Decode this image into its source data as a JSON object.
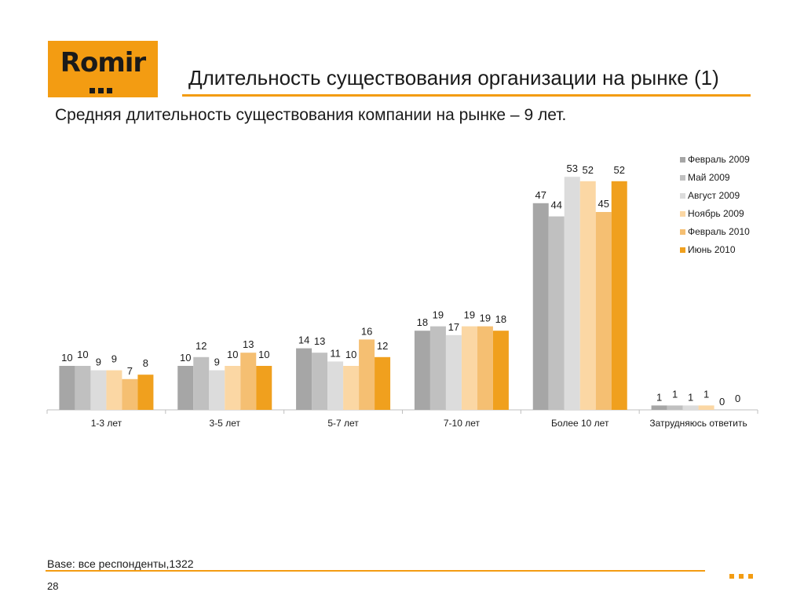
{
  "logo": {
    "text": "Romir"
  },
  "title": "Длительность существования организации на рынке (1)",
  "subtitle": "Средняя длительность существования компании на рынке – 9 лет.",
  "footer": {
    "base_note": "Base: все респонденты,1322",
    "page_number": "28"
  },
  "colors": {
    "accent": "#f39c12"
  },
  "chart_data": {
    "type": "bar",
    "categories": [
      "1-3 лет",
      "3-5 лет",
      "5-7 лет",
      "7-10 лет",
      "Более 10 лет",
      "Затрудняюсь ответить"
    ],
    "series": [
      {
        "name": "Февраль 2009",
        "color": "#a6a6a6",
        "values": [
          10,
          10,
          14,
          18,
          47,
          1
        ]
      },
      {
        "name": "Май 2009",
        "color": "#c0c0c0",
        "values": [
          10,
          12,
          13,
          19,
          44,
          1
        ]
      },
      {
        "name": "Август 2009",
        "color": "#dcdcdc",
        "values": [
          9,
          9,
          11,
          17,
          53,
          1
        ]
      },
      {
        "name": "Ноябрь 2009",
        "color": "#fbd7a4",
        "values": [
          9,
          10,
          10,
          19,
          52,
          1
        ]
      },
      {
        "name": "Февраль 2010",
        "color": "#f5bf72",
        "values": [
          7,
          13,
          16,
          19,
          45,
          0
        ]
      },
      {
        "name": "Июнь 2010",
        "color": "#f0a01e",
        "values": [
          8,
          10,
          12,
          18,
          52,
          0
        ]
      }
    ],
    "ylim": [
      0,
      55
    ],
    "data_labels": true,
    "legend_position": "top-right",
    "grid": false
  }
}
